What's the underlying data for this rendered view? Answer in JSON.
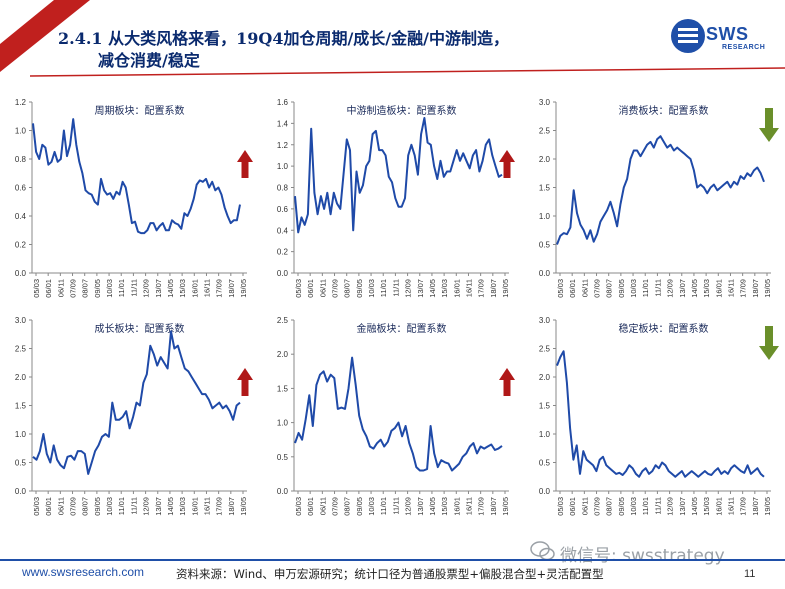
{
  "header": {
    "title_line1": "2.4.1 从大类风格来看，19Q4加仓周期/成长/金融/中游制造，",
    "title_line2": "减仓消费/稳定",
    "logo_text": "SWS",
    "logo_sub": "RESEARCH",
    "accent_color": "#c0201e",
    "brand_color": "#1f4fa8"
  },
  "footer": {
    "website": "www.swsresearch.com",
    "source": "资料来源：Wind、申万宏源研究；统计口径为普通股票型+偏股混合型+灵活配置型",
    "page_number": "11",
    "wechat": "微信号: swsstrategy"
  },
  "x_ticks": [
    "05/03",
    "06/01",
    "06/11",
    "07/09",
    "08/07",
    "09/05",
    "10/03",
    "11/01",
    "11/11",
    "12/09",
    "13/07",
    "14/05",
    "15/03",
    "16/01",
    "16/11",
    "17/09",
    "18/07",
    "19/05"
  ],
  "chart_data": [
    {
      "type": "line",
      "title": "周期板块：配置系数",
      "ylim": [
        0,
        1.2
      ],
      "yticks": [
        "0.0",
        "0.2",
        "0.4",
        "0.6",
        "0.8",
        "1.0",
        "1.2"
      ],
      "arrow": "up",
      "values": [
        1.05,
        0.85,
        0.8,
        0.9,
        0.88,
        0.76,
        0.78,
        0.85,
        0.78,
        0.8,
        1.0,
        0.82,
        0.9,
        1.08,
        0.9,
        0.78,
        0.7,
        0.58,
        0.56,
        0.55,
        0.5,
        0.48,
        0.66,
        0.58,
        0.55,
        0.56,
        0.52,
        0.57,
        0.55,
        0.64,
        0.6,
        0.48,
        0.35,
        0.36,
        0.29,
        0.28,
        0.28,
        0.3,
        0.35,
        0.35,
        0.3,
        0.33,
        0.35,
        0.3,
        0.3,
        0.37,
        0.35,
        0.34,
        0.31,
        0.42,
        0.4,
        0.45,
        0.52,
        0.62,
        0.65,
        0.64,
        0.66,
        0.6,
        0.64,
        0.58,
        0.6,
        0.55,
        0.46,
        0.4,
        0.35,
        0.37,
        0.37,
        0.48
      ]
    },
    {
      "type": "line",
      "title": "中游制造板块：配置系数",
      "ylim": [
        0,
        1.6
      ],
      "yticks": [
        "0.0",
        "0.2",
        "0.4",
        "0.6",
        "0.8",
        "1.0",
        "1.2",
        "1.4",
        "1.6"
      ],
      "arrow": "up",
      "values": [
        0.72,
        0.38,
        0.52,
        0.45,
        0.55,
        1.35,
        0.75,
        0.55,
        0.72,
        0.6,
        0.75,
        0.55,
        0.75,
        0.65,
        0.6,
        0.92,
        1.25,
        1.15,
        0.4,
        0.95,
        0.75,
        0.82,
        1.0,
        1.05,
        1.3,
        1.33,
        1.15,
        1.15,
        1.1,
        0.9,
        0.85,
        0.7,
        0.62,
        0.62,
        0.7,
        1.1,
        1.2,
        1.1,
        0.92,
        1.3,
        1.45,
        1.22,
        1.2,
        1.0,
        0.88,
        1.05,
        0.9,
        0.95,
        0.95,
        1.05,
        1.15,
        1.05,
        1.12,
        1.05,
        0.98,
        1.1,
        1.15,
        0.95,
        1.05,
        1.2,
        1.25,
        1.1,
        1.0,
        0.9,
        0.92
      ]
    },
    {
      "type": "line",
      "title": "消费板块：配置系数",
      "ylim": [
        0,
        3.0
      ],
      "yticks": [
        "0.0",
        "0.5",
        "1.0",
        "1.5",
        "2.0",
        "2.5",
        "3.0"
      ],
      "arrow": "down",
      "values": [
        0.5,
        0.65,
        0.7,
        0.68,
        0.8,
        1.45,
        1.05,
        0.85,
        0.75,
        0.6,
        0.75,
        0.55,
        0.68,
        0.9,
        1.0,
        1.1,
        1.25,
        1.05,
        0.82,
        1.2,
        1.5,
        1.65,
        2.0,
        2.15,
        2.15,
        2.05,
        2.15,
        2.25,
        2.3,
        2.2,
        2.35,
        2.4,
        2.3,
        2.2,
        2.25,
        2.15,
        2.2,
        2.15,
        2.1,
        2.05,
        2.0,
        1.8,
        1.5,
        1.55,
        1.5,
        1.4,
        1.5,
        1.55,
        1.45,
        1.5,
        1.55,
        1.6,
        1.5,
        1.6,
        1.55,
        1.7,
        1.65,
        1.75,
        1.7,
        1.8,
        1.85,
        1.75,
        1.6
      ]
    },
    {
      "type": "line",
      "title": "成长板块：配置系数",
      "ylim": [
        0,
        3.0
      ],
      "yticks": [
        "0.0",
        "0.5",
        "1.0",
        "1.5",
        "2.0",
        "2.5",
        "3.0"
      ],
      "arrow": "up",
      "values": [
        0.6,
        0.55,
        0.7,
        1.0,
        0.65,
        0.5,
        0.8,
        0.55,
        0.45,
        0.4,
        0.6,
        0.62,
        0.55,
        0.7,
        0.7,
        0.65,
        0.3,
        0.5,
        0.7,
        0.8,
        0.95,
        1.0,
        0.95,
        1.55,
        1.25,
        1.25,
        1.3,
        1.4,
        1.1,
        1.3,
        1.55,
        1.5,
        1.9,
        2.05,
        2.55,
        2.4,
        2.2,
        2.35,
        2.25,
        2.15,
        2.8,
        2.5,
        2.55,
        2.35,
        2.15,
        2.1,
        2.0,
        1.9,
        1.8,
        1.7,
        1.7,
        1.6,
        1.45,
        1.5,
        1.55,
        1.45,
        1.5,
        1.4,
        1.25,
        1.5,
        1.55
      ]
    },
    {
      "type": "line",
      "title": "金融板块：配置系数",
      "ylim": [
        0,
        2.5
      ],
      "yticks": [
        "0.0",
        "0.5",
        "1.0",
        "1.5",
        "2.0",
        "2.5"
      ],
      "arrow": "up",
      "values": [
        0.7,
        0.85,
        0.75,
        1.05,
        1.4,
        0.95,
        1.55,
        1.7,
        1.75,
        1.6,
        1.7,
        1.65,
        1.2,
        1.22,
        1.2,
        1.5,
        1.95,
        1.55,
        1.1,
        0.9,
        0.8,
        0.65,
        0.62,
        0.7,
        0.75,
        0.65,
        0.72,
        0.88,
        0.92,
        1.0,
        0.8,
        0.95,
        0.7,
        0.55,
        0.35,
        0.3,
        0.3,
        0.32,
        0.95,
        0.55,
        0.35,
        0.45,
        0.42,
        0.4,
        0.3,
        0.35,
        0.4,
        0.5,
        0.55,
        0.65,
        0.7,
        0.55,
        0.65,
        0.62,
        0.65,
        0.68,
        0.6,
        0.62,
        0.66
      ]
    },
    {
      "type": "line",
      "title": "稳定板块：配置系数",
      "ylim": [
        0,
        3.0
      ],
      "yticks": [
        "0.0",
        "0.5",
        "1.0",
        "1.5",
        "2.0",
        "2.5",
        "3.0"
      ],
      "arrow": "down",
      "values": [
        2.2,
        2.35,
        2.45,
        1.9,
        1.1,
        0.55,
        0.8,
        0.3,
        0.7,
        0.55,
        0.5,
        0.45,
        0.35,
        0.55,
        0.6,
        0.45,
        0.4,
        0.35,
        0.3,
        0.32,
        0.28,
        0.35,
        0.45,
        0.4,
        0.3,
        0.25,
        0.35,
        0.4,
        0.3,
        0.35,
        0.45,
        0.4,
        0.5,
        0.45,
        0.35,
        0.3,
        0.25,
        0.3,
        0.35,
        0.25,
        0.3,
        0.35,
        0.3,
        0.25,
        0.3,
        0.35,
        0.3,
        0.28,
        0.35,
        0.4,
        0.3,
        0.35,
        0.3,
        0.4,
        0.45,
        0.4,
        0.35,
        0.32,
        0.45,
        0.3,
        0.35,
        0.4,
        0.3,
        0.25
      ]
    }
  ]
}
